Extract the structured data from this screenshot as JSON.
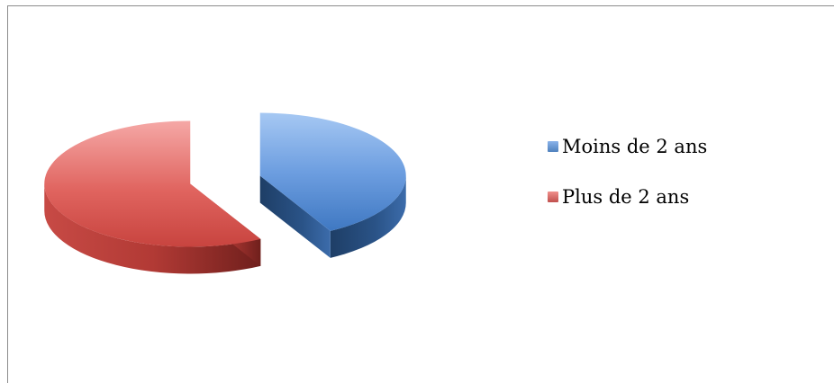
{
  "chart_data": {
    "type": "pie",
    "style": "3d-exploded",
    "categories": [
      "Moins de 2 ans",
      "Plus de 2 ans"
    ],
    "values": [
      42,
      58
    ],
    "unit": "%",
    "colors": [
      "#4f81bd",
      "#c0504d"
    ],
    "legend": "right"
  },
  "legend": {
    "items": [
      {
        "label": "Moins de 2 ans",
        "color": "#4f81bd"
      },
      {
        "label": "Plus de 2 ans",
        "color": "#c0504d"
      }
    ]
  }
}
